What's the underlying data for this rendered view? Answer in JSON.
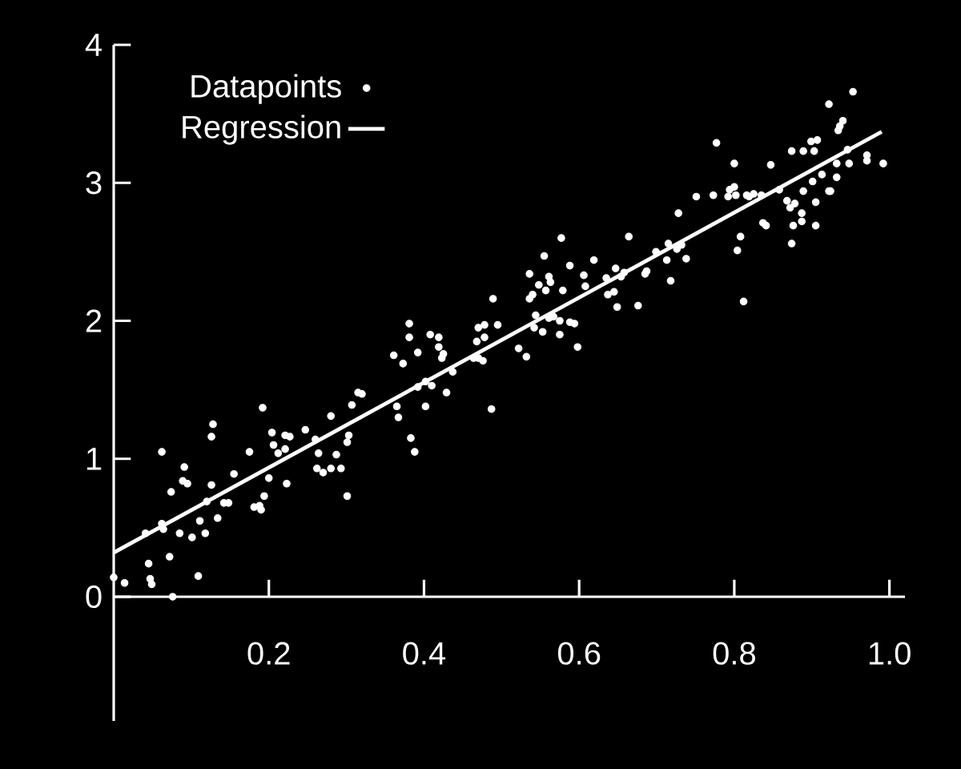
{
  "chart_data": {
    "type": "scatter",
    "xlim": [
      0,
      1.02
    ],
    "ylim": [
      -0.9,
      4
    ],
    "xticks": [
      0.2,
      0.4,
      0.6,
      0.8,
      {
        "value": 1,
        "label": "1.0"
      }
    ],
    "yticks": [
      0,
      1,
      2,
      3,
      4
    ],
    "legend": "top left",
    "series": [
      {
        "name": "Datapoints",
        "color": "#ffffff",
        "marker": "circle",
        "x": [
          0.0,
          0.014,
          0.047,
          0.049,
          0.076,
          0.045,
          0.072,
          0.109,
          0.062,
          0.041,
          0.062,
          0.064,
          0.085,
          0.101,
          0.118,
          0.111,
          0.134,
          0.074,
          0.089,
          0.095,
          0.091,
          0.126,
          0.12,
          0.142,
          0.148,
          0.155,
          0.126,
          0.128,
          0.175,
          0.192,
          0.181,
          0.188,
          0.19,
          0.194,
          0.2,
          0.223,
          0.204,
          0.206,
          0.212,
          0.221,
          0.227,
          0.221,
          0.247,
          0.26,
          0.264,
          0.27,
          0.262,
          0.28,
          0.293,
          0.287,
          0.28,
          0.301,
          0.303,
          0.301,
          0.307,
          0.315,
          0.32,
          0.365,
          0.367,
          0.383,
          0.388,
          0.402,
          0.392,
          0.41,
          0.429,
          0.402,
          0.361,
          0.373,
          0.381,
          0.381,
          0.392,
          0.408,
          0.419,
          0.419,
          0.425,
          0.423,
          0.437,
          0.464,
          0.47,
          0.476,
          0.468,
          0.478,
          0.47,
          0.478,
          0.495,
          0.489,
          0.487,
          0.522,
          0.532,
          0.536,
          0.536,
          0.54,
          0.544,
          0.542,
          0.553,
          0.555,
          0.548,
          0.557,
          0.561,
          0.563,
          0.561,
          0.567,
          0.575,
          0.575,
          0.579,
          0.577,
          0.588,
          0.588,
          0.594,
          0.598,
          0.606,
          0.608,
          0.619,
          0.635,
          0.637,
          0.645,
          0.649,
          0.647,
          0.654,
          0.658,
          0.664,
          0.676,
          0.685,
          0.687,
          0.699,
          0.713,
          0.715,
          0.718,
          0.728,
          0.726,
          0.732,
          0.738,
          0.751,
          0.773,
          0.777,
          0.792,
          0.794,
          0.8,
          0.8,
          0.802,
          0.804,
          0.808,
          0.812,
          0.816,
          0.819,
          0.825,
          0.835,
          0.837,
          0.841,
          0.847,
          0.858,
          0.868,
          0.872,
          0.874,
          0.878,
          0.876,
          0.874,
          0.887,
          0.887,
          0.889,
          0.889,
          0.899,
          0.903,
          0.907,
          0.905,
          0.905,
          0.901,
          0.913,
          0.922,
          0.924,
          0.932,
          0.932,
          0.922,
          0.934,
          0.936,
          0.94,
          0.953,
          0.948,
          0.971,
          0.971,
          0.992,
          0.946
        ],
        "values": [
          0.14,
          0.1,
          0.13,
          0.09,
          0.0,
          0.24,
          0.29,
          0.15,
          1.05,
          0.46,
          0.53,
          0.49,
          0.46,
          0.43,
          0.46,
          0.55,
          0.57,
          0.76,
          0.84,
          0.82,
          0.94,
          0.81,
          0.69,
          0.68,
          0.68,
          0.89,
          1.16,
          1.25,
          1.05,
          1.37,
          0.65,
          0.66,
          0.63,
          0.73,
          0.86,
          0.82,
          1.19,
          1.1,
          1.04,
          1.17,
          1.16,
          1.07,
          1.21,
          1.14,
          1.04,
          0.9,
          0.93,
          0.93,
          0.93,
          1.03,
          1.31,
          0.73,
          1.17,
          1.12,
          1.39,
          1.48,
          1.47,
          1.38,
          1.3,
          1.15,
          1.05,
          1.38,
          1.52,
          1.53,
          1.48,
          1.56,
          1.75,
          1.69,
          1.98,
          1.88,
          1.77,
          1.9,
          1.88,
          1.81,
          1.76,
          1.73,
          1.63,
          1.73,
          1.73,
          1.71,
          1.85,
          1.88,
          1.95,
          1.97,
          1.97,
          2.16,
          1.36,
          1.8,
          1.74,
          2.34,
          2.16,
          2.19,
          2.04,
          1.95,
          1.92,
          2.47,
          2.26,
          2.22,
          2.32,
          2.28,
          2.02,
          2.03,
          2.0,
          1.9,
          2.22,
          2.6,
          2.4,
          1.99,
          1.98,
          1.81,
          2.33,
          2.25,
          2.44,
          2.31,
          2.19,
          2.21,
          2.1,
          2.38,
          2.32,
          2.35,
          2.61,
          2.11,
          2.34,
          2.36,
          2.5,
          2.44,
          2.56,
          2.29,
          2.78,
          2.52,
          2.55,
          2.45,
          2.9,
          2.91,
          3.29,
          2.9,
          2.95,
          2.97,
          3.14,
          2.91,
          2.51,
          2.61,
          2.14,
          2.91,
          2.9,
          2.92,
          2.91,
          2.71,
          2.69,
          3.13,
          2.95,
          2.87,
          2.82,
          3.23,
          2.85,
          2.69,
          2.56,
          2.78,
          2.72,
          2.94,
          3.23,
          3.3,
          3.23,
          3.31,
          2.86,
          2.69,
          3.01,
          3.06,
          2.94,
          2.94,
          3.04,
          3.14,
          3.57,
          3.38,
          3.41,
          3.45,
          3.66,
          3.14,
          3.2,
          3.16,
          3.14,
          3.24
        ]
      },
      {
        "name": "Regression",
        "type": "line",
        "color": "#ffffff",
        "line_style": "solid",
        "x": [
          0,
          0.99
        ],
        "values": [
          0.32,
          3.37
        ]
      }
    ]
  }
}
